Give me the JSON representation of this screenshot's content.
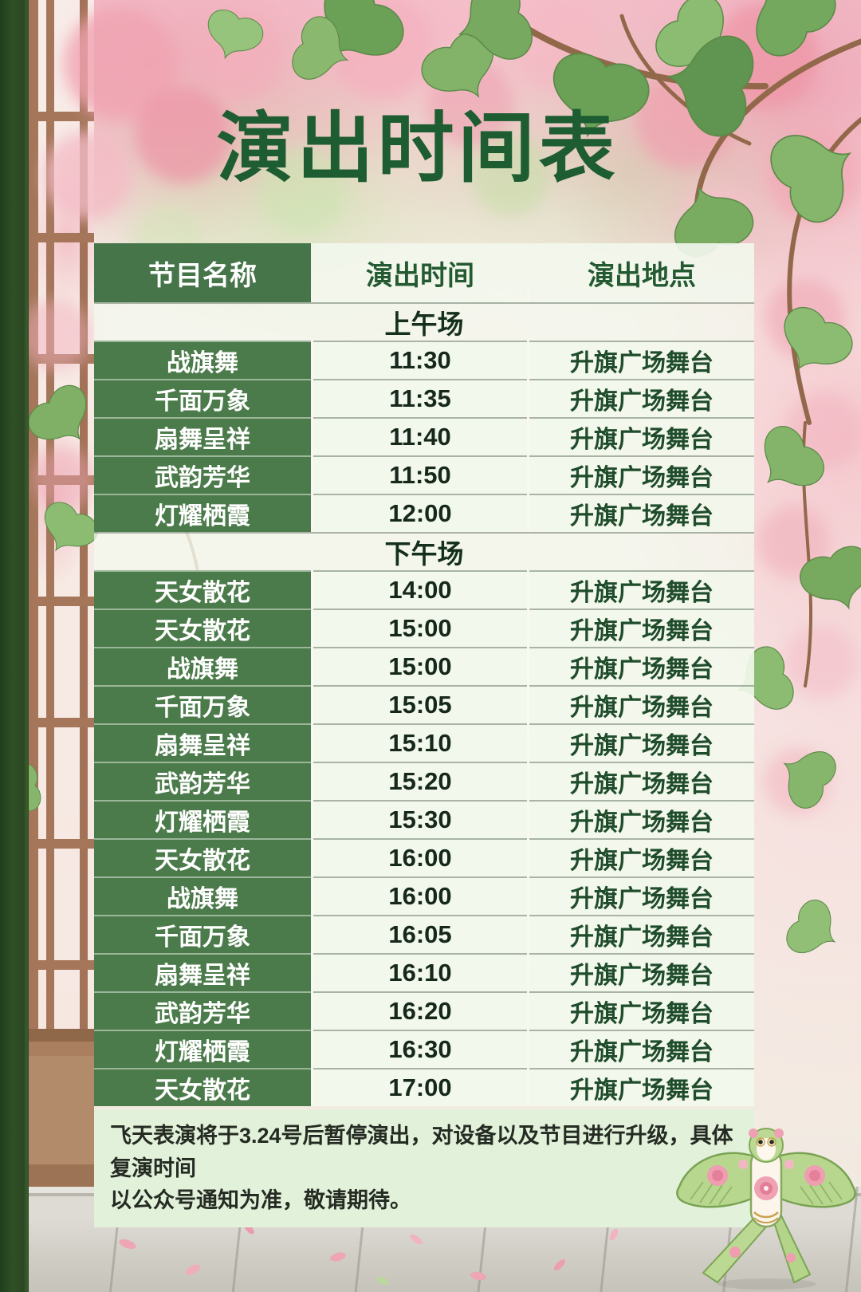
{
  "title": "演出时间表",
  "colors": {
    "title_green": "#1e5c31",
    "header_green": "#46754a",
    "cell_green": "#4b7b4a",
    "time_text": "#15281b",
    "venue_text": "#1f4c2b",
    "section_text": "#14301d",
    "notice_bg": "#e2f1da",
    "notice_text": "#252b23"
  },
  "table": {
    "columns": [
      "节目名称",
      "演出时间",
      "演出地点"
    ],
    "sections": [
      {
        "label": "上午场",
        "rows": [
          [
            "战旗舞",
            "11:30",
            "升旗广场舞台"
          ],
          [
            "千面万象",
            "11:35",
            "升旗广场舞台"
          ],
          [
            "扇舞呈祥",
            "11:40",
            "升旗广场舞台"
          ],
          [
            "武韵芳华",
            "11:50",
            "升旗广场舞台"
          ],
          [
            "灯耀栖霞",
            "12:00",
            "升旗广场舞台"
          ]
        ]
      },
      {
        "label": "下午场",
        "rows": [
          [
            "天女散花",
            "14:00",
            "升旗广场舞台"
          ],
          [
            "天女散花",
            "15:00",
            "升旗广场舞台"
          ],
          [
            "战旗舞",
            "15:00",
            "升旗广场舞台"
          ],
          [
            "千面万象",
            "15:05",
            "升旗广场舞台"
          ],
          [
            "扇舞呈祥",
            "15:10",
            "升旗广场舞台"
          ],
          [
            "武韵芳华",
            "15:20",
            "升旗广场舞台"
          ],
          [
            "灯耀栖霞",
            "15:30",
            "升旗广场舞台"
          ],
          [
            "天女散花",
            "16:00",
            "升旗广场舞台"
          ],
          [
            "战旗舞",
            "16:00",
            "升旗广场舞台"
          ],
          [
            "千面万象",
            "16:05",
            "升旗广场舞台"
          ],
          [
            "扇舞呈祥",
            "16:10",
            "升旗广场舞台"
          ],
          [
            "武韵芳华",
            "16:20",
            "升旗广场舞台"
          ],
          [
            "灯耀栖霞",
            "16:30",
            "升旗广场舞台"
          ],
          [
            "天女散花",
            "17:00",
            "升旗广场舞台"
          ]
        ]
      }
    ]
  },
  "notice": {
    "lines": [
      "飞天表演将于3.24号后暂停演出，对设备以及节目进行升级，具体复演时间",
      "以公众号通知为准，敬请期待。"
    ]
  },
  "decor": {
    "kite": "swallow-kite"
  }
}
